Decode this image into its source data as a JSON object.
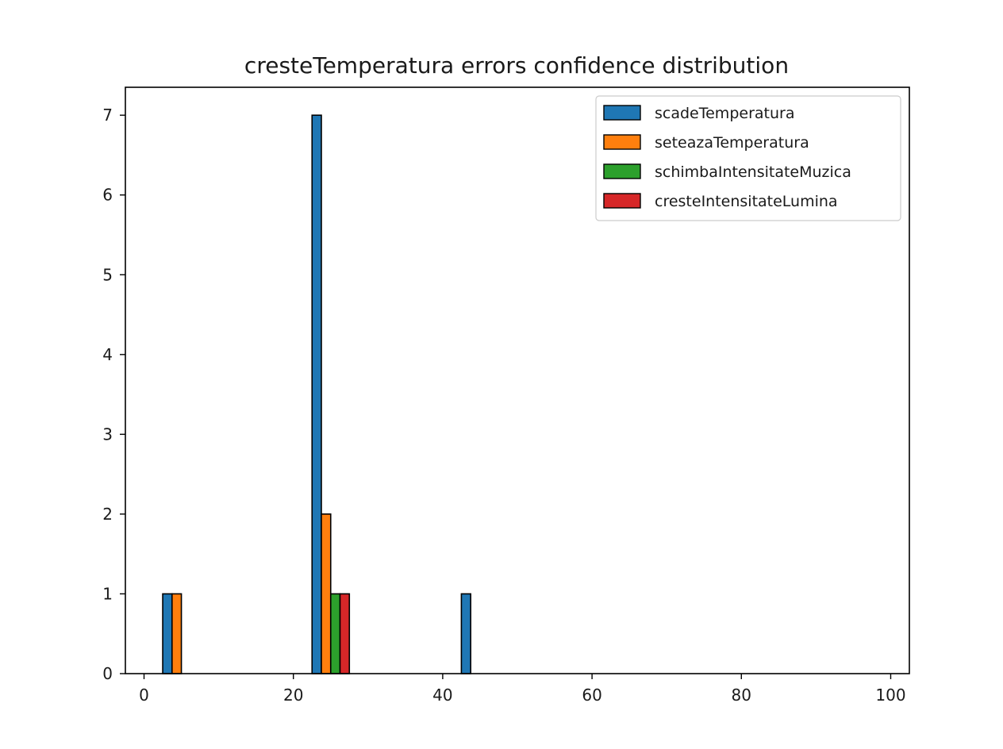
{
  "chart_data": {
    "type": "bar",
    "title": "cresteTemperatura errors confidence distribution",
    "xlabel": "",
    "ylabel": "",
    "xlim": [
      -2.5,
      102.5
    ],
    "ylim": [
      0,
      7.35
    ],
    "x_ticks": [
      0,
      20,
      40,
      60,
      80,
      100
    ],
    "y_ticks": [
      0,
      1,
      2,
      3,
      4,
      5,
      6,
      7
    ],
    "grid": false,
    "legend_position": "top-right",
    "bin_edges": [
      0,
      10,
      20,
      30,
      40,
      50,
      60,
      70,
      80,
      90,
      100
    ],
    "categories": [
      "0-10",
      "10-20",
      "20-30",
      "30-40",
      "40-50",
      "50-60",
      "60-70",
      "70-80",
      "80-90",
      "90-100"
    ],
    "series": [
      {
        "name": "scadeTemperatura",
        "color": "#1f77b4",
        "values": [
          1,
          0,
          7,
          0,
          1,
          0,
          0,
          0,
          0,
          0
        ]
      },
      {
        "name": "seteazaTemperatura",
        "color": "#ff7f0e",
        "values": [
          1,
          0,
          2,
          0,
          0,
          0,
          0,
          0,
          0,
          0
        ]
      },
      {
        "name": "schimbaIntensitateMuzica",
        "color": "#2ca02c",
        "values": [
          0,
          0,
          1,
          0,
          0,
          0,
          0,
          0,
          0,
          0
        ]
      },
      {
        "name": "cresteIntensitateLumina",
        "color": "#d62728",
        "values": [
          0,
          0,
          1,
          0,
          0,
          0,
          0,
          0,
          0,
          0
        ]
      }
    ]
  }
}
